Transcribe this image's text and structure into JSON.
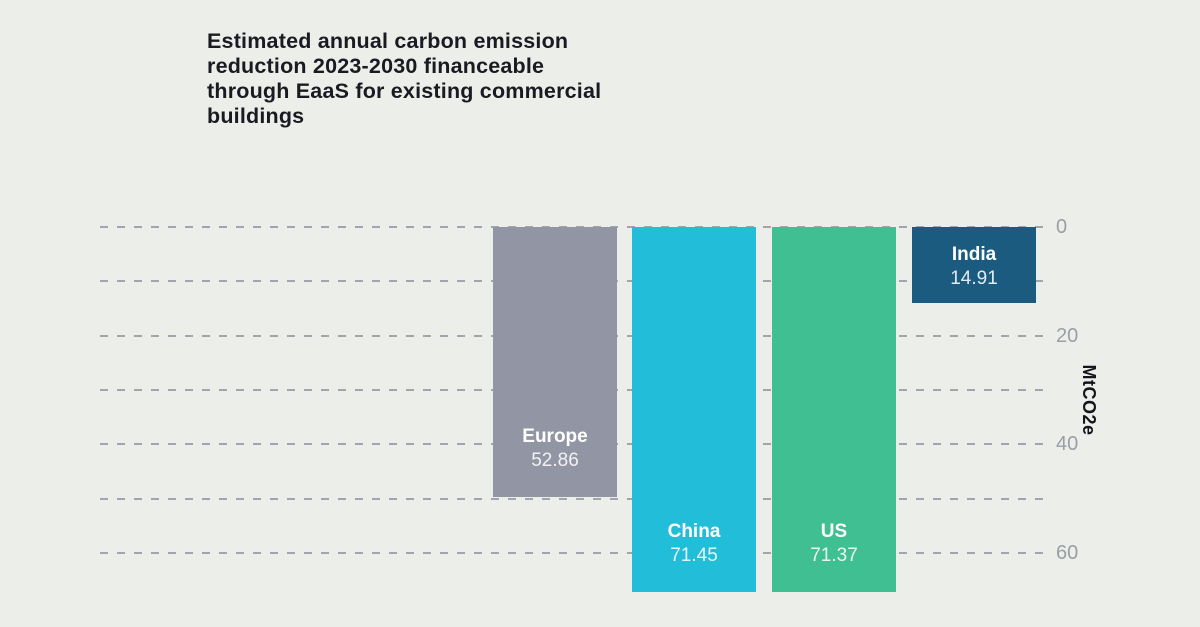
{
  "chart_data": {
    "type": "bar",
    "title": "Estimated annual carbon emission reduction 2023-2030 financeable through EaaS for existing commercial buildings",
    "title_lines": [
      "Estimated annual carbon emission",
      "reduction 2023-2030 financeable",
      "through EaaS for existing commercial",
      "buildings"
    ],
    "categories": [
      "Europe",
      "China",
      "US",
      "India"
    ],
    "values": [
      52.86,
      71.45,
      71.37,
      14.91
    ],
    "value_labels": [
      "52.86",
      "71.45",
      "71.37",
      "14.91"
    ],
    "bar_colors": [
      "#9295a3",
      "#22bdd8",
      "#40bf92",
      "#1b5b80"
    ],
    "ylabel": "MtCO2e",
    "yticks": [
      0,
      10,
      20,
      30,
      40,
      50,
      60
    ],
    "ytick_labels": [
      "0",
      "",
      "20",
      "",
      "40",
      "",
      "60"
    ],
    "ylim": [
      0,
      71.45
    ],
    "y_inverted": true,
    "grid": "horizontal-dashed",
    "legend": "none"
  },
  "colors": {
    "background": "#eceee9",
    "title_text": "#1a1a22",
    "gridline": "#a2a5ad",
    "tick_label": "#9b9ea7",
    "bar_label_text": "#ffffff",
    "axis_unit_text": "#14151c"
  }
}
